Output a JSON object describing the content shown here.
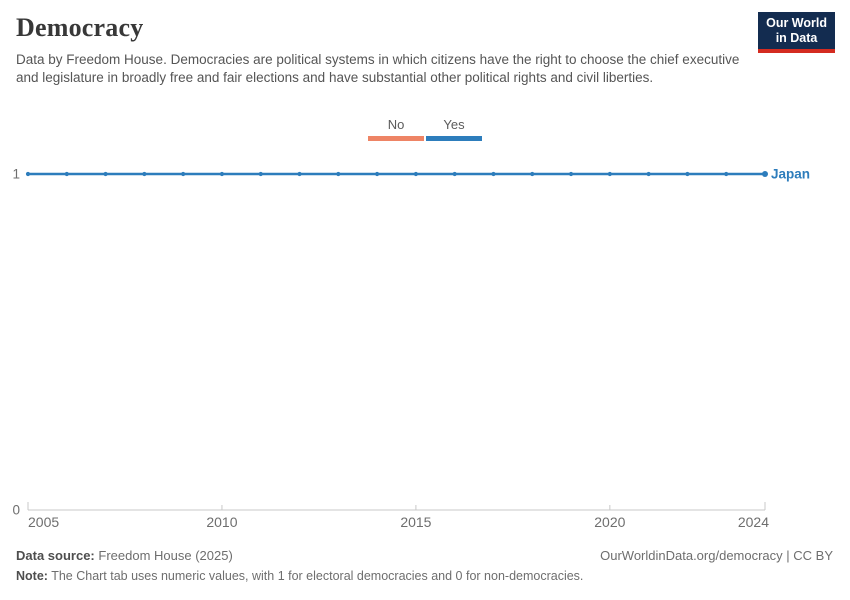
{
  "header": {
    "title": "Democracy",
    "subtitle": "Data by Freedom House. Democracies are political systems in which citizens have the right to choose the chief executive and legislature in broadly free and fair elections and have substantial other political rights and civil liberties.",
    "logo": {
      "line1": "Our World",
      "line2": "in Data",
      "bg_color": "#132c50",
      "accent_color": "#d42b20"
    }
  },
  "legend": {
    "items": [
      {
        "label": "No",
        "color": "#ee8465"
      },
      {
        "label": "Yes",
        "color": "#2d7dbc"
      }
    ]
  },
  "chart_data": {
    "type": "line",
    "title": "Democracy",
    "xlabel": "",
    "ylabel": "",
    "xlim": [
      2005,
      2024
    ],
    "ylim": [
      0,
      1
    ],
    "x_ticks": [
      2005,
      2010,
      2015,
      2020,
      2024
    ],
    "y_ticks": [
      0,
      1
    ],
    "grid": false,
    "legend_position": "top-center",
    "series": [
      {
        "name": "Japan",
        "color": "#2d7dbc",
        "x": [
          2005,
          2006,
          2007,
          2008,
          2009,
          2010,
          2011,
          2012,
          2013,
          2014,
          2015,
          2016,
          2017,
          2018,
          2019,
          2020,
          2021,
          2022,
          2023,
          2024
        ],
        "values": [
          1,
          1,
          1,
          1,
          1,
          1,
          1,
          1,
          1,
          1,
          1,
          1,
          1,
          1,
          1,
          1,
          1,
          1,
          1,
          1
        ]
      }
    ],
    "axis_color": "#c8c8c8",
    "tick_label_color": "#6e6e6e"
  },
  "footer": {
    "source_label": "Data source:",
    "source_value": "Freedom House (2025)",
    "attribution": "OurWorldinData.org/democracy | CC BY",
    "note_label": "Note:",
    "note_value": "The Chart tab uses numeric values, with 1 for electoral democracies and 0 for non-democracies."
  }
}
